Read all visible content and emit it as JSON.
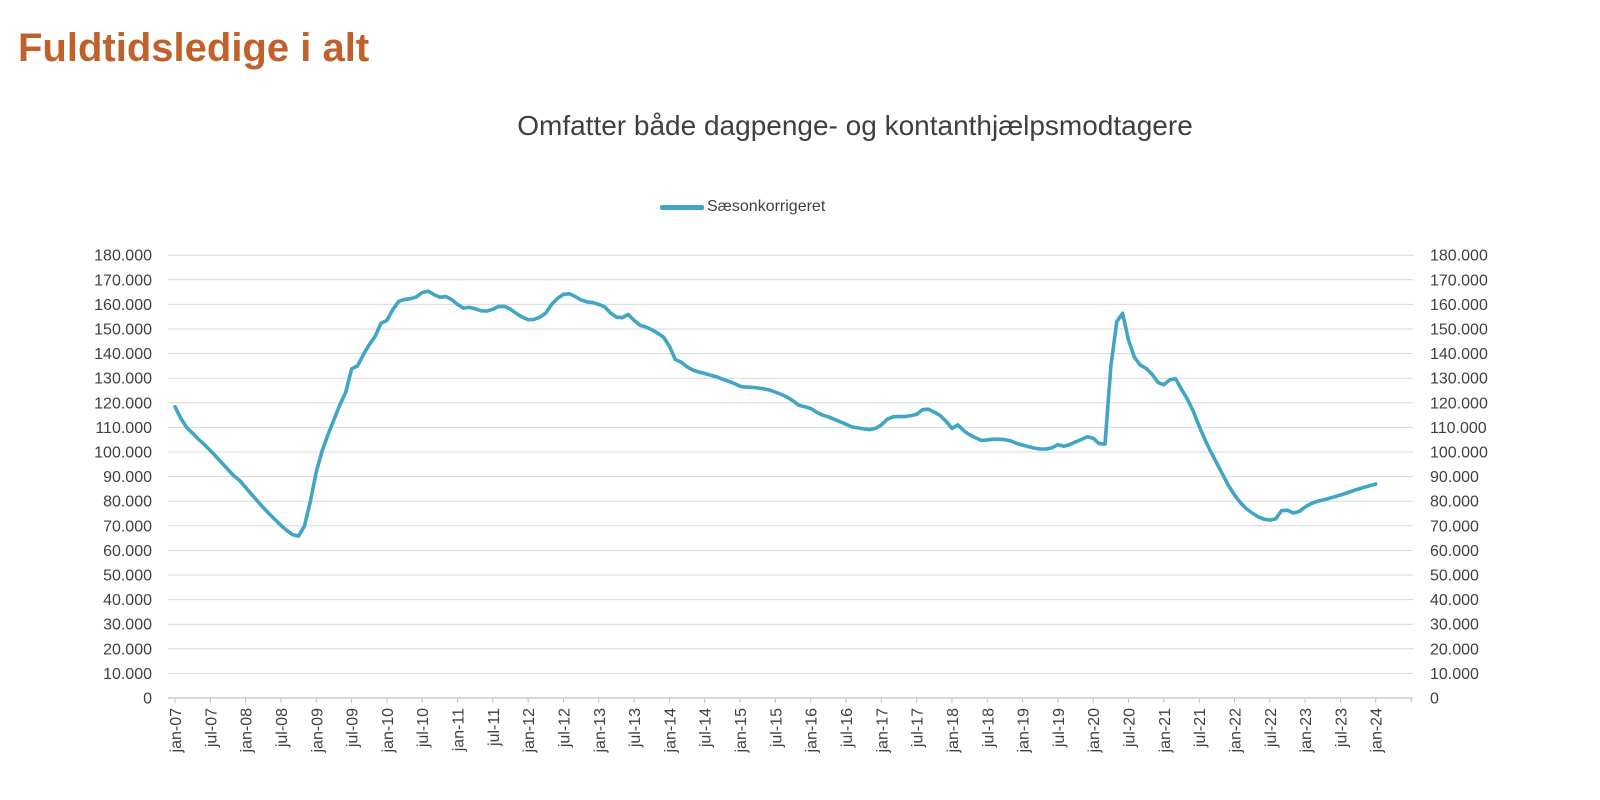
{
  "title": {
    "text": "Fuldtidsledige i alt",
    "color": "#C0612C"
  },
  "chart": {
    "subtitle": "Omfatter både dagpenge- og kontanthjælpsmodtagere",
    "legend": {
      "label": "Sæsonkorrigeret"
    },
    "colors": {
      "series_line": "#41A5C4",
      "gridline": "#D9D9D9",
      "axis_line": "#C0C0C0",
      "tick": "#C0C0C0",
      "axis_text": "#404040"
    }
  },
  "chart_data": {
    "type": "line",
    "title": "Omfatter både dagpenge- og kontanthjælpsmodtagere",
    "xlabel": "",
    "ylabel": "",
    "ylim": [
      0,
      180000
    ],
    "y_tick_step": 10000,
    "grid": "horizontal",
    "legend_position": "top-center",
    "dual_y_axis": true,
    "x_frequency": "monthly",
    "x_start": "jan-07",
    "x_end": "jan-24",
    "x_tick_labels": [
      "jan-07",
      "jul-07",
      "jan-08",
      "jul-08",
      "jan-09",
      "jul-09",
      "jan-10",
      "jul-10",
      "jan-11",
      "jul-11",
      "jan-12",
      "jul-12",
      "jan-13",
      "jul-13",
      "jan-14",
      "jul-14",
      "jan-15",
      "jul-15",
      "jan-16",
      "jul-16",
      "jan-17",
      "jul-17",
      "jan-18",
      "jul-18",
      "jan-19",
      "jul-19",
      "jan-20",
      "jul-20",
      "jan-21",
      "jul-21",
      "jan-22",
      "jul-22",
      "jan-23",
      "jul-23",
      "jan-24"
    ],
    "y_tick_labels": [
      "0",
      "10.000",
      "20.000",
      "30.000",
      "40.000",
      "50.000",
      "60.000",
      "70.000",
      "80.000",
      "90.000",
      "100.000",
      "110.000",
      "120.000",
      "130.000",
      "140.000",
      "150.000",
      "160.000",
      "170.000",
      "180.000"
    ],
    "series": [
      {
        "name": "Sæsonkorrigeret",
        "color": "#41A5C4",
        "unit": "persons",
        "values": [
          118400,
          113600,
          109900,
          107600,
          105200,
          103000,
          100600,
          98100,
          95500,
          92900,
          90300,
          88400,
          85600,
          82800,
          80100,
          77400,
          74900,
          72500,
          70200,
          68100,
          66400,
          65800,
          70000,
          80000,
          92000,
          100400,
          107100,
          113100,
          119100,
          124300,
          133800,
          135000,
          139600,
          143600,
          147000,
          152300,
          153500,
          157900,
          161200,
          162000,
          162300,
          163000,
          164800,
          165400,
          164000,
          162900,
          163200,
          162000,
          160000,
          158500,
          158800,
          158200,
          157400,
          157300,
          158000,
          159200,
          159200,
          158000,
          156300,
          154800,
          153800,
          153900,
          154800,
          156500,
          160000,
          162500,
          164100,
          164300,
          163200,
          161800,
          161000,
          160700,
          160000,
          159000,
          156500,
          154800,
          154600,
          155900,
          153500,
          151500,
          150800,
          149700,
          148300,
          146700,
          143000,
          137600,
          136500,
          134600,
          133300,
          132500,
          131900,
          131200,
          130600,
          129600,
          128800,
          127900,
          126700,
          126400,
          126300,
          126000,
          125700,
          125200,
          124300,
          123400,
          122300,
          120800,
          119000,
          118400,
          117700,
          116200,
          115000,
          114300,
          113300,
          112300,
          111300,
          110200,
          109800,
          109400,
          109100,
          109600,
          111000,
          113300,
          114300,
          114400,
          114400,
          114800,
          115300,
          117200,
          117400,
          116200,
          114800,
          112500,
          109600,
          111000,
          108700,
          107000,
          105800,
          104700,
          104900,
          105200,
          105200,
          105000,
          104500,
          103500,
          102800,
          102200,
          101600,
          101200,
          101200,
          101700,
          103000,
          102300,
          103000,
          104100,
          105100,
          106200,
          105600,
          103400,
          103200,
          135000,
          153000,
          156400,
          145500,
          138500,
          135300,
          134000,
          131600,
          128300,
          127300,
          129300,
          129800,
          125500,
          121500,
          116500,
          110500,
          105000,
          100000,
          95500,
          90800,
          86300,
          82500,
          79400,
          77000,
          75200,
          73700,
          72700,
          72300,
          72800,
          76200,
          76300,
          75200,
          75800,
          77600,
          79000,
          79900,
          80500,
          81100,
          81800,
          82500,
          83300,
          84100,
          84900,
          85600,
          86300,
          87000
        ]
      }
    ]
  }
}
